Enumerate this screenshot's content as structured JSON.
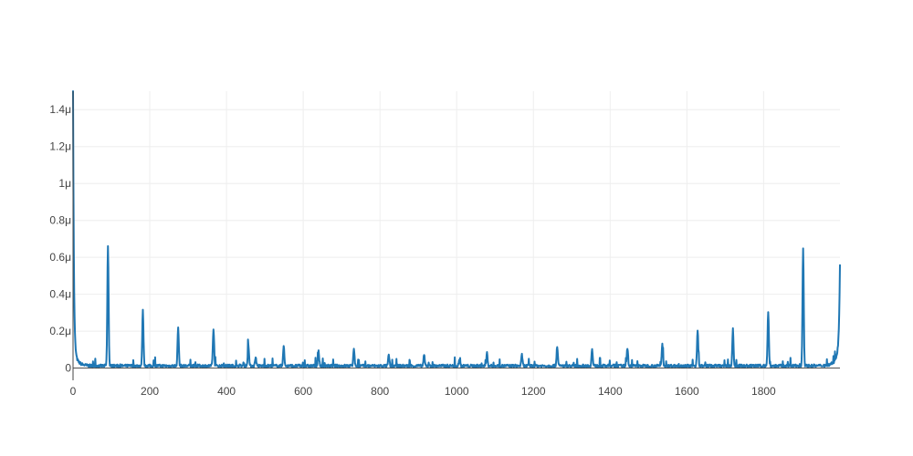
{
  "chart_data": {
    "type": "line",
    "title": "",
    "xlabel": "",
    "ylabel": "",
    "xlim": [
      0,
      1999
    ],
    "ylim": [
      -6.6e-08,
      1.5e-06
    ],
    "grid": true,
    "x_ticks": [
      {
        "value": 0,
        "label": "0"
      },
      {
        "value": 200,
        "label": "200"
      },
      {
        "value": 400,
        "label": "400"
      },
      {
        "value": 600,
        "label": "600"
      },
      {
        "value": 800,
        "label": "800"
      },
      {
        "value": 1000,
        "label": "1000"
      },
      {
        "value": 1200,
        "label": "1200"
      },
      {
        "value": 1400,
        "label": "1400"
      },
      {
        "value": 1600,
        "label": "1600"
      },
      {
        "value": 1800,
        "label": "1800"
      }
    ],
    "y_ticks": [
      {
        "value": 0,
        "label": "0"
      },
      {
        "value": 2e-07,
        "label": "0.2μ"
      },
      {
        "value": 4e-07,
        "label": "0.4μ"
      },
      {
        "value": 6e-07,
        "label": "0.6μ"
      },
      {
        "value": 8e-07,
        "label": "0.8μ"
      },
      {
        "value": 1e-06,
        "label": "1μ"
      },
      {
        "value": 1.2e-06,
        "label": "1.2μ"
      },
      {
        "value": 1.4e-06,
        "label": "1.4μ"
      }
    ],
    "colors": {
      "line": "#1f77b4"
    },
    "series": [
      {
        "baseline": 1.2e-08,
        "start_value": 1.5e-06,
        "end_value": 4.7e-07,
        "peaks": [
          {
            "x": 0,
            "y": 1.5e-06
          },
          {
            "x": 91,
            "y": 6.6e-07
          },
          {
            "x": 182,
            "y": 3.1e-07
          },
          {
            "x": 274,
            "y": 2.2e-07
          },
          {
            "x": 366,
            "y": 2.1e-07
          },
          {
            "x": 457,
            "y": 1.3e-07
          },
          {
            "x": 476,
            "y": 6e-08
          },
          {
            "x": 549,
            "y": 1.2e-07
          },
          {
            "x": 640,
            "y": 9e-08
          },
          {
            "x": 732,
            "y": 1.1e-07
          },
          {
            "x": 823,
            "y": 7e-08
          },
          {
            "x": 915,
            "y": 7e-08
          },
          {
            "x": 1007,
            "y": 5e-08
          },
          {
            "x": 1079,
            "y": 8e-08
          },
          {
            "x": 1170,
            "y": 7e-08
          },
          {
            "x": 1262,
            "y": 1.2e-07
          },
          {
            "x": 1353,
            "y": 1e-07
          },
          {
            "x": 1445,
            "y": 1.1e-07
          },
          {
            "x": 1536,
            "y": 1.3e-07
          },
          {
            "x": 1628,
            "y": 2.1e-07
          },
          {
            "x": 1720,
            "y": 2.1e-07
          },
          {
            "x": 1812,
            "y": 3.1e-07
          },
          {
            "x": 1903,
            "y": 6.5e-07
          },
          {
            "x": 1999,
            "y": 4.7e-07
          }
        ]
      }
    ]
  }
}
